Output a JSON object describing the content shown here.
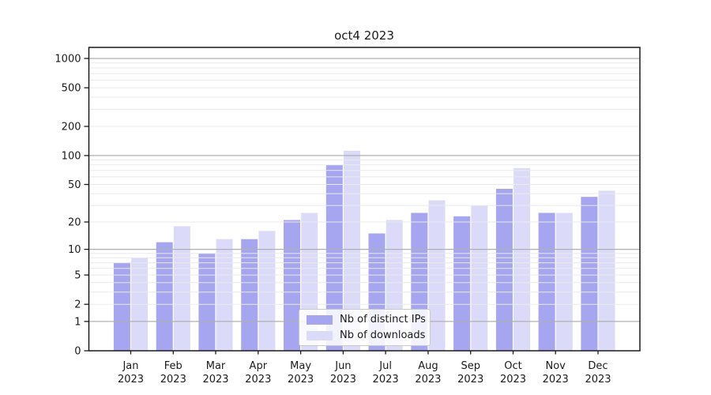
{
  "figure": {
    "title": "oct4 2023"
  },
  "chart_data": {
    "type": "bar",
    "title": "oct4 2023",
    "categories": [
      "Jan",
      "Feb",
      "Mar",
      "Apr",
      "May",
      "Jun",
      "Jul",
      "Aug",
      "Sep",
      "Oct",
      "Nov",
      "Dec"
    ],
    "category_year_suffix": "2023",
    "series": [
      {
        "name": "Nb of distinct IPs",
        "color": "#a5a5f0",
        "values": [
          7,
          12,
          9,
          13,
          21,
          80,
          15,
          25,
          23,
          45,
          25,
          37
        ]
      },
      {
        "name": "Nb of downloads",
        "color": "#dbdbf9",
        "values": [
          8,
          18,
          13,
          16,
          25,
          112,
          21,
          34,
          30,
          74,
          25,
          43
        ]
      }
    ],
    "xlabel": "",
    "ylabel": "",
    "yscale": "log1p",
    "ylim": [
      0,
      1300
    ],
    "ytick_labels": [
      "0",
      "1",
      "2",
      "5",
      "10",
      "20",
      "50",
      "100",
      "200",
      "500",
      "1000"
    ],
    "ytick_values": [
      0,
      1,
      2,
      5,
      10,
      20,
      50,
      100,
      200,
      500,
      1000
    ],
    "major_gridlines": [
      1,
      10,
      100,
      1000
    ],
    "minor_gridlines": [
      2,
      3,
      4,
      5,
      6,
      7,
      8,
      9,
      20,
      30,
      40,
      50,
      60,
      70,
      80,
      90,
      200,
      300,
      400,
      500,
      600,
      700,
      800,
      900
    ],
    "grid": "on",
    "legend_position": "lower center",
    "colors": {
      "background": "#ffffff",
      "axis": "#1a1a1a",
      "text": "#1a1a1a",
      "major_grid": "#b0b0b0",
      "minor_grid": "#eaeaea",
      "legend_border": "#c9c9c9",
      "legend_bg": "rgba(255,255,255,0.85)"
    }
  }
}
